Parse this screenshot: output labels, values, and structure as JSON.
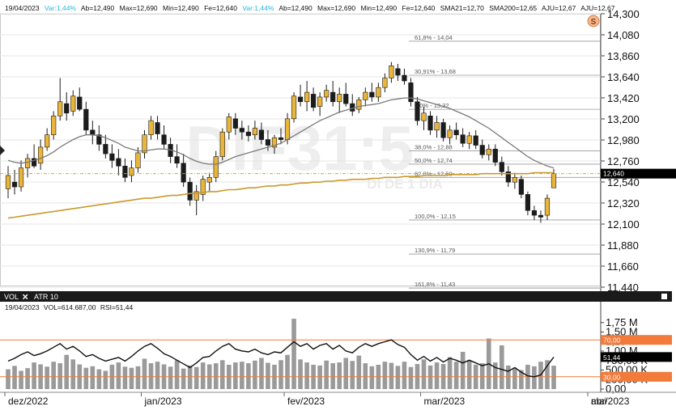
{
  "colors": {
    "up": "#e9b53a",
    "down": "#1c1c1c",
    "sma21": "#7a7a7a",
    "sma200": "#c99a2e",
    "volume": "#9a9a9a",
    "rsi": "#111111",
    "rsi_band": "#f27a3a",
    "last_price": "#000000",
    "info_cyan": "#2ab7d6",
    "info_text": "#111111"
  },
  "info_bar": {
    "date": "19/04/2023",
    "var1": "Var:1,44%",
    "ab1": "Ab=12,490",
    "max1": "Max=12,690",
    "min1": "Min=12,490",
    "fe1": "Fe=12,640",
    "var2": "Var:1,44%",
    "ab2": "Ab=12,490",
    "max2": "Max=12,690",
    "min2": "Min=12,490",
    "fe2": "Fe=12,640",
    "sma21": "SMA21=12,70",
    "sma200": "SMA200=12,65",
    "aju1": "AJU=12,67",
    "aju2": "AJU=12,67"
  },
  "watermark": {
    "ticker": "DIF31:5",
    "subtitle": "DI DE 1 DIA"
  },
  "badge": {
    "icon": "s-circle-icon",
    "letter": "S"
  },
  "fibonacci": [
    {
      "label": "61,8% - 14,04",
      "value": 14.04
    },
    {
      "label": "30,91% - 13,68",
      "value": 13.68
    },
    {
      "label": "0,0% - 13,32",
      "value": 13.32
    },
    {
      "label": "38,0% - 12,88",
      "value": 12.88
    },
    {
      "label": "50,0% - 12,74",
      "value": 12.74
    },
    {
      "label": "62,0% - 12,60",
      "value": 12.6
    },
    {
      "label": "100,0% - 12,15",
      "value": 12.15
    },
    {
      "label": "130,9% - 11,79",
      "value": 11.79
    },
    {
      "label": "161,8% - 11,43",
      "value": 11.43
    }
  ],
  "chart_data": [
    {
      "type": "candlestick",
      "ylim": [
        11.44,
        14.33
      ],
      "y_ticks": [
        "14,300",
        "14,080",
        "13,860",
        "13,640",
        "13,420",
        "13,200",
        "12,980",
        "12,760",
        "12,540",
        "12,320",
        "12,100",
        "11,880",
        "11,660",
        "11,440"
      ],
      "last_price_label": "12,640",
      "last_price": 12.64,
      "x_labels": [
        "dez/2022",
        "jan/2023",
        "fev/2023",
        "mar/2023",
        "abr/2023",
        "mai"
      ],
      "candles": [
        [
          12.48,
          12.72,
          12.38,
          12.62
        ],
        [
          12.55,
          12.68,
          12.42,
          12.5
        ],
        [
          12.5,
          12.78,
          12.45,
          12.7
        ],
        [
          12.7,
          12.85,
          12.6,
          12.8
        ],
        [
          12.8,
          12.95,
          12.7,
          12.72
        ],
        [
          12.75,
          13.0,
          12.68,
          12.92
        ],
        [
          12.92,
          13.12,
          12.88,
          13.05
        ],
        [
          13.05,
          13.3,
          13.0,
          13.25
        ],
        [
          13.25,
          13.65,
          13.2,
          13.4
        ],
        [
          13.38,
          13.5,
          13.2,
          13.28
        ],
        [
          13.3,
          13.52,
          13.25,
          13.46
        ],
        [
          13.45,
          13.55,
          13.3,
          13.32
        ],
        [
          13.32,
          13.4,
          13.05,
          13.1
        ],
        [
          13.1,
          13.2,
          12.95,
          13.05
        ],
        [
          13.05,
          13.15,
          12.88,
          12.95
        ],
        [
          12.95,
          13.05,
          12.8,
          12.85
        ],
        [
          12.85,
          12.95,
          12.7,
          12.78
        ],
        [
          12.8,
          12.9,
          12.62,
          12.72
        ],
        [
          12.72,
          12.8,
          12.55,
          12.6
        ],
        [
          12.62,
          12.78,
          12.55,
          12.7
        ],
        [
          12.7,
          12.92,
          12.65,
          12.86
        ],
        [
          12.86,
          13.1,
          12.8,
          13.05
        ],
        [
          13.05,
          13.25,
          13.0,
          13.2
        ],
        [
          13.18,
          13.25,
          13.0,
          13.06
        ],
        [
          13.05,
          13.15,
          12.9,
          12.95
        ],
        [
          12.95,
          13.02,
          12.75,
          12.82
        ],
        [
          12.82,
          12.95,
          12.7,
          12.75
        ],
        [
          12.75,
          12.85,
          12.5,
          12.55
        ],
        [
          12.55,
          12.6,
          12.3,
          12.36
        ],
        [
          12.36,
          12.52,
          12.2,
          12.45
        ],
        [
          12.42,
          12.62,
          12.35,
          12.58
        ],
        [
          12.55,
          12.65,
          12.45,
          12.6
        ],
        [
          12.6,
          12.88,
          12.55,
          12.82
        ],
        [
          12.82,
          13.12,
          12.78,
          13.08
        ],
        [
          13.08,
          13.28,
          13.0,
          13.24
        ],
        [
          13.22,
          13.28,
          13.05,
          13.12
        ],
        [
          13.12,
          13.2,
          13.0,
          13.08
        ],
        [
          13.08,
          13.15,
          12.98,
          13.04
        ],
        [
          13.05,
          13.2,
          13.0,
          13.12
        ],
        [
          13.1,
          13.18,
          12.95,
          13.0
        ],
        [
          13.0,
          13.1,
          12.88,
          12.94
        ],
        [
          12.92,
          13.05,
          12.85,
          13.02
        ],
        [
          13.02,
          13.12,
          12.95,
          13.0
        ],
        [
          13.0,
          13.28,
          12.95,
          13.22
        ],
        [
          13.22,
          13.5,
          13.18,
          13.46
        ],
        [
          13.45,
          13.58,
          13.35,
          13.4
        ],
        [
          13.4,
          13.62,
          13.3,
          13.5
        ],
        [
          13.48,
          13.55,
          13.3,
          13.34
        ],
        [
          13.35,
          13.5,
          13.25,
          13.45
        ],
        [
          13.45,
          13.58,
          13.4,
          13.52
        ],
        [
          13.5,
          13.62,
          13.35,
          13.4
        ],
        [
          13.4,
          13.55,
          13.28,
          13.48
        ],
        [
          13.48,
          13.6,
          13.35,
          13.38
        ],
        [
          13.38,
          13.48,
          13.25,
          13.3
        ],
        [
          13.32,
          13.45,
          13.28,
          13.42
        ],
        [
          13.42,
          13.55,
          13.35,
          13.5
        ],
        [
          13.5,
          13.6,
          13.4,
          13.45
        ],
        [
          13.45,
          13.6,
          13.4,
          13.55
        ],
        [
          13.55,
          13.7,
          13.5,
          13.65
        ],
        [
          13.65,
          13.82,
          13.6,
          13.78
        ],
        [
          13.75,
          13.8,
          13.62,
          13.68
        ],
        [
          13.68,
          13.75,
          13.58,
          13.62
        ],
        [
          13.6,
          13.65,
          13.35,
          13.4
        ],
        [
          13.4,
          13.45,
          13.15,
          13.2
        ],
        [
          13.2,
          13.35,
          13.1,
          13.28
        ],
        [
          13.25,
          13.3,
          13.05,
          13.1
        ],
        [
          13.1,
          13.25,
          13.02,
          13.18
        ],
        [
          13.18,
          13.22,
          12.98,
          13.02
        ],
        [
          13.02,
          13.15,
          12.95,
          13.1
        ],
        [
          13.1,
          13.18,
          13.0,
          13.05
        ],
        [
          13.05,
          13.12,
          12.92,
          12.96
        ],
        [
          12.96,
          13.08,
          12.9,
          13.04
        ],
        [
          13.04,
          13.1,
          12.9,
          12.94
        ],
        [
          12.94,
          13.0,
          12.8,
          12.84
        ],
        [
          12.84,
          12.95,
          12.78,
          12.9
        ],
        [
          12.9,
          12.95,
          12.72,
          12.76
        ],
        [
          12.76,
          12.82,
          12.62,
          12.66
        ],
        [
          12.66,
          12.72,
          12.5,
          12.55
        ],
        [
          12.55,
          12.65,
          12.48,
          12.6
        ],
        [
          12.58,
          12.62,
          12.38,
          12.42
        ],
        [
          12.42,
          12.45,
          12.2,
          12.25
        ],
        [
          12.25,
          12.3,
          12.15,
          12.2
        ],
        [
          12.2,
          12.25,
          12.12,
          12.18
        ],
        [
          12.2,
          12.42,
          12.15,
          12.38
        ],
        [
          12.49,
          12.69,
          12.49,
          12.64
        ]
      ],
      "sma21": [
        12.78,
        12.76,
        12.75,
        12.76,
        12.78,
        12.8,
        12.83,
        12.87,
        12.92,
        12.96,
        13.0,
        13.03,
        13.05,
        13.05,
        13.04,
        13.02,
        12.99,
        12.96,
        12.92,
        12.9,
        12.88,
        12.88,
        12.89,
        12.9,
        12.9,
        12.89,
        12.87,
        12.84,
        12.8,
        12.77,
        12.75,
        12.74,
        12.74,
        12.76,
        12.79,
        12.82,
        12.84,
        12.86,
        12.88,
        12.9,
        12.92,
        12.94,
        12.96,
        13.0,
        13.04,
        13.08,
        13.12,
        13.16,
        13.2,
        13.23,
        13.26,
        13.29,
        13.31,
        13.33,
        13.35,
        13.36,
        13.37,
        13.38,
        13.4,
        13.42,
        13.43,
        13.44,
        13.44,
        13.43,
        13.41,
        13.39,
        13.37,
        13.35,
        13.33,
        13.3,
        13.27,
        13.24,
        13.2,
        13.16,
        13.12,
        13.07,
        13.02,
        12.97,
        12.92,
        12.87,
        12.82,
        12.78,
        12.75,
        12.72,
        12.7
      ],
      "sma200": [
        12.17,
        12.18,
        12.19,
        12.2,
        12.21,
        12.22,
        12.23,
        12.24,
        12.25,
        12.26,
        12.27,
        12.28,
        12.29,
        12.3,
        12.31,
        12.32,
        12.33,
        12.34,
        12.35,
        12.36,
        12.37,
        12.38,
        12.38,
        12.39,
        12.4,
        12.41,
        12.41,
        12.42,
        12.43,
        12.43,
        12.44,
        12.45,
        12.45,
        12.46,
        12.47,
        12.47,
        12.48,
        12.49,
        12.49,
        12.5,
        12.51,
        12.51,
        12.52,
        12.52,
        12.53,
        12.54,
        12.54,
        12.55,
        12.55,
        12.56,
        12.56,
        12.57,
        12.57,
        12.58,
        12.58,
        12.58,
        12.59,
        12.59,
        12.6,
        12.6,
        12.6,
        12.61,
        12.61,
        12.61,
        12.62,
        12.62,
        12.62,
        12.62,
        12.63,
        12.63,
        12.63,
        12.63,
        12.63,
        12.64,
        12.64,
        12.64,
        12.64,
        12.64,
        12.64,
        12.64,
        12.64,
        12.65,
        12.65,
        12.65,
        12.65
      ]
    },
    {
      "type": "bar",
      "tabs": [
        "VOL",
        "ATR 10"
      ],
      "readout_date": "19/04/2023",
      "readout_vol": "VOL=614.687,00",
      "readout_rsi": "RSI=51,44",
      "ylim": [
        0,
        2000000
      ],
      "y_ticks": [
        "1,75 M",
        "1,50 M",
        "1,25 M",
        "1,00 M",
        "750,00 K",
        "500,00 K",
        "250,00 K",
        "0,00"
      ],
      "rsi_70_label": "70,00",
      "rsi_30_label": "30,00",
      "rsi_last_label": "51,44",
      "volume": [
        520000,
        610000,
        480000,
        550000,
        700000,
        650000,
        590000,
        720000,
        680000,
        900000,
        780000,
        650000,
        560000,
        600000,
        520000,
        480000,
        640000,
        700000,
        590000,
        560000,
        600000,
        800000,
        680000,
        720000,
        650000,
        590000,
        760000,
        540000,
        620000,
        580000,
        700000,
        650000,
        680000,
        760000,
        640000,
        700000,
        720000,
        680000,
        750000,
        820000,
        690000,
        640000,
        760000,
        900000,
        1850000,
        780000,
        700000,
        640000,
        620000,
        750000,
        680000,
        700000,
        820000,
        740000,
        880000,
        680000,
        600000,
        640000,
        720000,
        690000,
        610000,
        720000,
        580000,
        660000,
        780000,
        620000,
        700000,
        660000,
        840000,
        720000,
        980000,
        760000,
        640000,
        680000,
        1330000,
        700000,
        1150000,
        620000,
        560000,
        500000,
        640000,
        600000,
        720000,
        760000,
        614687
      ],
      "rsi": [
        47,
        50,
        54,
        57,
        53,
        55,
        58,
        62,
        66,
        60,
        63,
        58,
        52,
        54,
        50,
        47,
        49,
        51,
        47,
        52,
        58,
        63,
        66,
        61,
        55,
        52,
        48,
        44,
        40,
        45,
        51,
        52,
        58,
        63,
        66,
        60,
        58,
        57,
        60,
        56,
        54,
        57,
        56,
        62,
        68,
        63,
        66,
        60,
        64,
        66,
        60,
        64,
        58,
        56,
        62,
        66,
        63,
        66,
        68,
        70,
        65,
        62,
        54,
        48,
        52,
        47,
        51,
        46,
        50,
        48,
        45,
        48,
        45,
        42,
        44,
        40,
        38,
        36,
        40,
        35,
        31,
        30,
        32,
        42,
        51.44
      ]
    }
  ]
}
